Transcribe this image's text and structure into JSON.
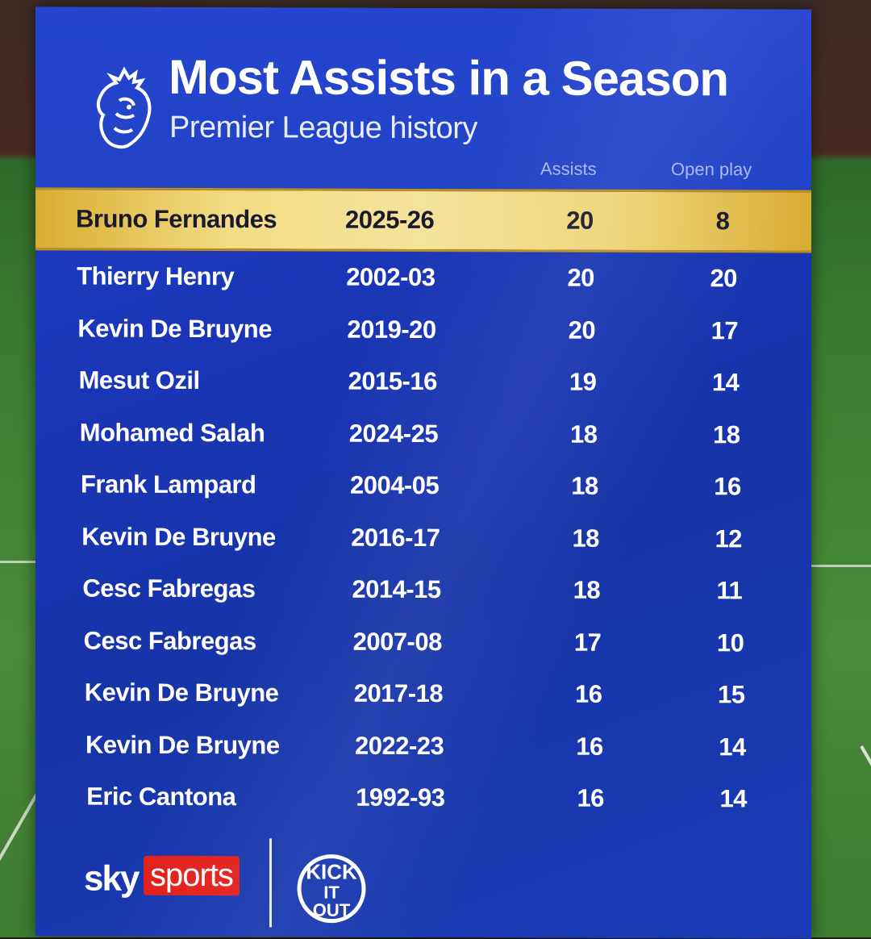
{
  "title": "Most Assists in a Season",
  "subtitle": "Premier League history",
  "columns": {
    "assists": "Assists",
    "open_play": "Open play"
  },
  "rows": [
    {
      "player": "Bruno Fernandes",
      "season": "2025-26",
      "assists": "20",
      "open_play": "8",
      "highlight": true
    },
    {
      "player": "Thierry Henry",
      "season": "2002-03",
      "assists": "20",
      "open_play": "20"
    },
    {
      "player": "Kevin De Bruyne",
      "season": "2019-20",
      "assists": "20",
      "open_play": "17"
    },
    {
      "player": "Mesut Ozil",
      "season": "2015-16",
      "assists": "19",
      "open_play": "14"
    },
    {
      "player": "Mohamed Salah",
      "season": "2024-25",
      "assists": "18",
      "open_play": "18"
    },
    {
      "player": "Frank Lampard",
      "season": "2004-05",
      "assists": "18",
      "open_play": "16"
    },
    {
      "player": "Kevin De Bruyne",
      "season": "2016-17",
      "assists": "18",
      "open_play": "12"
    },
    {
      "player": "Cesc Fabregas",
      "season": "2014-15",
      "assists": "18",
      "open_play": "11"
    },
    {
      "player": "Cesc Fabregas",
      "season": "2007-08",
      "assists": "17",
      "open_play": "10"
    },
    {
      "player": "Kevin De Bruyne",
      "season": "2017-18",
      "assists": "16",
      "open_play": "15"
    },
    {
      "player": "Kevin De Bruyne",
      "season": "2022-23",
      "assists": "16",
      "open_play": "14"
    },
    {
      "player": "Eric Cantona",
      "season": "1992-93",
      "assists": "16",
      "open_play": "14"
    }
  ],
  "footer": {
    "sky": "sky",
    "sports": "sports",
    "kick_it_out": "KICK IT OUT"
  },
  "colors": {
    "panel_blue": "#1a35b5",
    "highlight_gold": "#f3dc84",
    "sky_red": "#e2201c"
  },
  "icons": {
    "league_logo": "premier-league-lion-icon",
    "campaign_logo": "kick-it-out-logo"
  }
}
